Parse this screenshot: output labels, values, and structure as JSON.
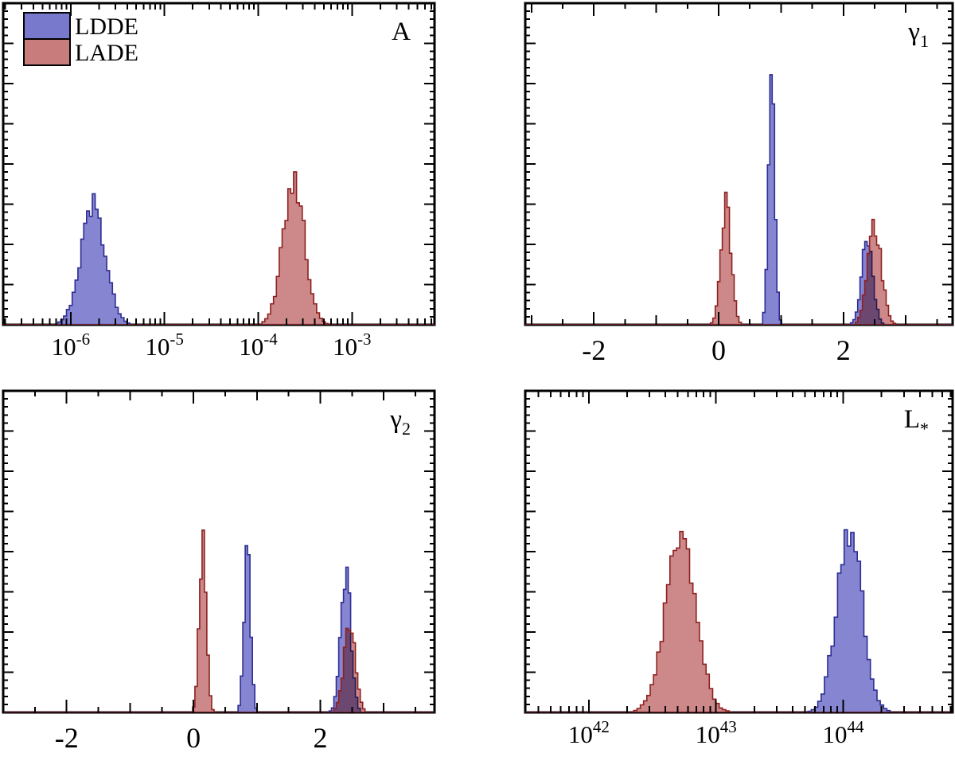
{
  "figure": {
    "background": "#ffffff",
    "frame_color": "#000000",
    "tick_color": "#000000",
    "models": {
      "LDDE": {
        "fill": "#7878cc",
        "stroke": "#2d2d94"
      },
      "LADE": {
        "fill": "#c87c7c",
        "stroke": "#8e1f1f"
      }
    }
  },
  "legend": {
    "entries": [
      {
        "model": "LDDE",
        "label": "LDDE"
      },
      {
        "model": "LADE",
        "label": "LADE"
      }
    ]
  },
  "chart_data": [
    {
      "type": "histogram",
      "panel": "A",
      "panel_label": {
        "text": "A",
        "sub": ""
      },
      "x_scale": "log10",
      "x_range": [
        -6.72,
        -2.12
      ],
      "x_major_ticks": [
        {
          "value": -6,
          "label_base": "10",
          "label_exp": "-6"
        },
        {
          "value": -5,
          "label_base": "10",
          "label_exp": "-5"
        },
        {
          "value": -4,
          "label_base": "10",
          "label_exp": "-4"
        },
        {
          "value": -3,
          "label_base": "10",
          "label_exp": "-3"
        }
      ],
      "y_range": [
        0,
        1
      ],
      "bins": 150,
      "legend": true,
      "series": [
        {
          "model": "LDDE",
          "components": [
            {
              "center": -5.76,
              "sigma": 0.13,
              "peak": 0.37
            }
          ]
        },
        {
          "model": "LADE",
          "components": [
            {
              "center": -3.62,
              "sigma": 0.115,
              "peak": 0.45
            }
          ]
        }
      ]
    },
    {
      "type": "histogram",
      "panel": "gamma1",
      "panel_label": {
        "text": "γ",
        "sub": "1"
      },
      "x_scale": "linear",
      "x_range": [
        -3.1,
        3.75
      ],
      "x_minor_step": 0.5,
      "x_major_ticks": [
        {
          "value": -2,
          "label": "-2"
        },
        {
          "value": 0,
          "label": "0"
        },
        {
          "value": 2,
          "label": "2"
        }
      ],
      "y_range": [
        0,
        1
      ],
      "bins": 180,
      "legend": false,
      "series": [
        {
          "model": "LDDE",
          "components": [
            {
              "center": 0.85,
              "sigma": 0.05,
              "peak": 0.8
            },
            {
              "center": 2.38,
              "sigma": 0.09,
              "peak": 0.26
            }
          ]
        },
        {
          "model": "LADE",
          "components": [
            {
              "center": 0.12,
              "sigma": 0.08,
              "peak": 0.37
            },
            {
              "center": 2.5,
              "sigma": 0.11,
              "peak": 0.3
            }
          ]
        }
      ]
    },
    {
      "type": "histogram",
      "panel": "gamma2",
      "panel_label": {
        "text": "γ",
        "sub": "2"
      },
      "x_scale": "linear",
      "x_range": [
        -3.0,
        3.8
      ],
      "x_minor_step": 0.5,
      "x_major_ticks": [
        {
          "value": -2,
          "label": "-2"
        },
        {
          "value": 0,
          "label": "0"
        },
        {
          "value": 2,
          "label": "2"
        }
      ],
      "y_range": [
        0,
        1
      ],
      "bins": 180,
      "legend": false,
      "series": [
        {
          "model": "LDDE",
          "components": [
            {
              "center": 0.85,
              "sigma": 0.05,
              "peak": 0.53
            },
            {
              "center": 2.4,
              "sigma": 0.08,
              "peak": 0.43
            }
          ]
        },
        {
          "model": "LADE",
          "components": [
            {
              "center": 0.15,
              "sigma": 0.055,
              "peak": 0.54
            },
            {
              "center": 2.46,
              "sigma": 0.09,
              "peak": 0.27
            }
          ]
        }
      ]
    },
    {
      "type": "histogram",
      "panel": "Lstar",
      "panel_label": {
        "text": "L",
        "sub": "*"
      },
      "x_scale": "log10",
      "x_range": [
        41.5,
        44.86
      ],
      "x_major_ticks": [
        {
          "value": 42,
          "label_base": "10",
          "label_exp": "42"
        },
        {
          "value": 43,
          "label_base": "10",
          "label_exp": "43"
        },
        {
          "value": 44,
          "label_base": "10",
          "label_exp": "44"
        }
      ],
      "y_range": [
        0,
        1
      ],
      "bins": 130,
      "legend": false,
      "series": [
        {
          "model": "LDDE",
          "components": [
            {
              "center": 44.05,
              "sigma": 0.1,
              "peak": 0.56
            }
          ]
        },
        {
          "model": "LADE",
          "components": [
            {
              "center": 42.72,
              "sigma": 0.12,
              "peak": 0.52
            }
          ]
        }
      ]
    }
  ]
}
